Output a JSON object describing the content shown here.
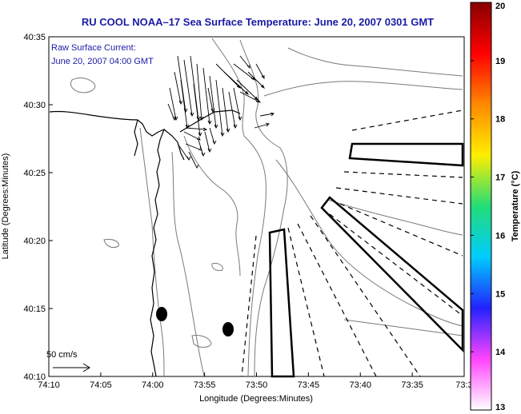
{
  "title": "RU COOL   NOAA–17  Sea Surface Temperature:  June 20, 2007 0301 GMT",
  "current_legend": {
    "line1": "Raw Surface Current:",
    "line2": "June 20, 2007 04:00 GMT"
  },
  "scale_label": "50 cm/s",
  "axes": {
    "xlabel": "Longitude (Degrees:Minutes)",
    "ylabel": "Latitude (Degrees:Minutes)",
    "x_ticks": [
      "74:10",
      "74:05",
      "74:00",
      "73:55",
      "73:50",
      "73:45",
      "73:40",
      "73:35",
      "73:3"
    ],
    "y_ticks": [
      "40:35",
      "40:30",
      "40:25",
      "40:20",
      "40:15",
      "40:10"
    ]
  },
  "colorbar": {
    "label": "Temperature (°C)",
    "ticks": [
      "20",
      "19",
      "18",
      "17",
      "16",
      "15",
      "14",
      "13"
    ],
    "range": [
      13,
      20
    ],
    "stops": [
      "#ffffff",
      "#ff44ff",
      "#2222ff",
      "#00ccff",
      "#22dd77",
      "#ffee00",
      "#ff8800",
      "#ff0000",
      "#880000"
    ]
  },
  "colors": {
    "title": "#1a1aa6",
    "coast": "#000000",
    "bathymetry": "#777777"
  }
}
